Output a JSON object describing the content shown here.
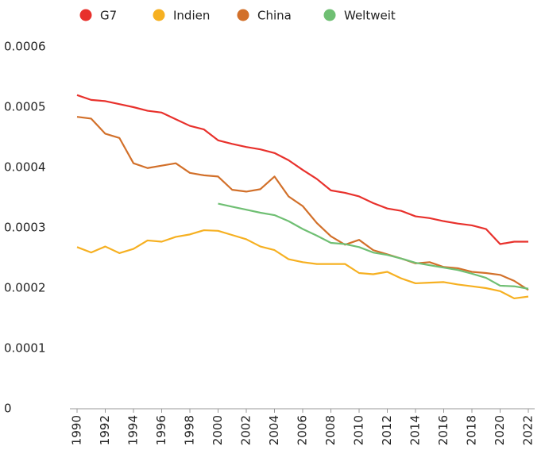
{
  "chart_data": {
    "type": "line",
    "x": [
      1990,
      1991,
      1992,
      1993,
      1994,
      1995,
      1996,
      1997,
      1998,
      1999,
      2000,
      2001,
      2002,
      2003,
      2004,
      2005,
      2006,
      2007,
      2008,
      2009,
      2010,
      2011,
      2012,
      2013,
      2014,
      2015,
      2016,
      2017,
      2018,
      2019,
      2020,
      2021,
      2022
    ],
    "series": [
      {
        "name": "G7",
        "color": "#e8312c",
        "values": [
          0.00052,
          0.000512,
          0.00051,
          0.000505,
          0.0005,
          0.000494,
          0.000491,
          0.00048,
          0.000469,
          0.000463,
          0.000445,
          0.000439,
          0.000434,
          0.00043,
          0.000424,
          0.000412,
          0.000396,
          0.000381,
          0.000362,
          0.000358,
          0.000352,
          0.000341,
          0.000332,
          0.000328,
          0.000319,
          0.000316,
          0.000311,
          0.000307,
          0.000304,
          0.000298,
          0.000273,
          0.000277,
          0.000277
        ]
      },
      {
        "name": "Indien",
        "color": "#f6b021",
        "values": [
          0.000268,
          0.000259,
          0.000269,
          0.000258,
          0.000265,
          0.000279,
          0.000277,
          0.000285,
          0.000289,
          0.000296,
          0.000295,
          0.000288,
          0.000281,
          0.000269,
          0.000263,
          0.000248,
          0.000243,
          0.00024,
          0.00024,
          0.00024,
          0.000225,
          0.000223,
          0.000227,
          0.000216,
          0.000208,
          0.000209,
          0.00021,
          0.000206,
          0.000203,
          0.0002,
          0.000195,
          0.000183,
          0.000186
        ]
      },
      {
        "name": "China",
        "color": "#d2702a",
        "values": [
          0.000484,
          0.000481,
          0.000456,
          0.000449,
          0.000407,
          0.000399,
          0.000403,
          0.000407,
          0.000391,
          0.000387,
          0.000385,
          0.000363,
          0.00036,
          0.000364,
          0.000385,
          0.000352,
          0.000336,
          0.000308,
          0.000286,
          0.000272,
          0.00028,
          0.000263,
          0.000256,
          0.000249,
          0.000241,
          0.000243,
          0.000235,
          0.000233,
          0.000227,
          0.000225,
          0.000222,
          0.000212,
          0.000197
        ]
      },
      {
        "name": "Weltweit",
        "color": "#6fbf73",
        "values": [
          null,
          null,
          null,
          null,
          null,
          null,
          null,
          null,
          null,
          null,
          0.00034,
          0.000335,
          0.00033,
          0.000325,
          0.000321,
          0.000311,
          0.000298,
          0.000287,
          0.000275,
          0.000273,
          0.000268,
          0.000259,
          0.000255,
          0.000249,
          0.000242,
          0.000238,
          0.000234,
          0.00023,
          0.000224,
          0.000217,
          0.000204,
          0.000203,
          0.000199
        ]
      }
    ],
    "xlim": [
      1990,
      2022
    ],
    "xticks": [
      1990,
      1992,
      1994,
      1996,
      1998,
      2000,
      2002,
      2004,
      2006,
      2008,
      2010,
      2012,
      2014,
      2016,
      2018,
      2020,
      2022
    ],
    "ylim": [
      0,
      0.0006
    ],
    "yticks": [
      0,
      0.0001,
      0.0002,
      0.0003,
      0.0004,
      0.0005,
      0.0006
    ],
    "grid": false,
    "legend": "top"
  }
}
